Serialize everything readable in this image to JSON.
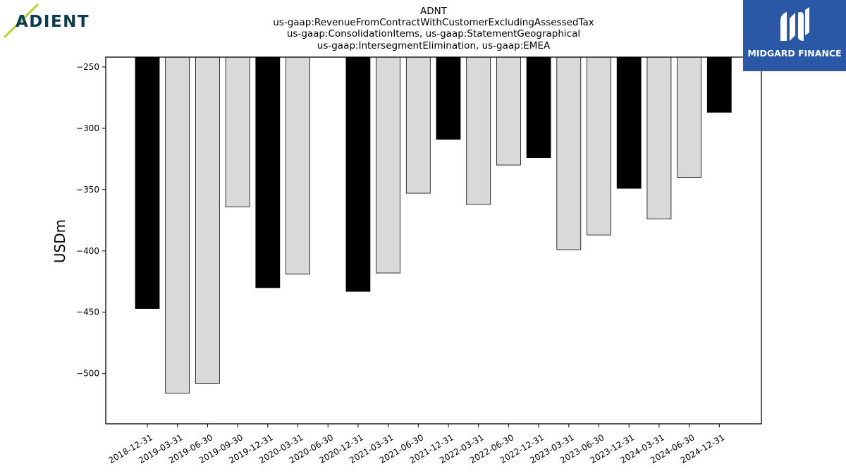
{
  "logos": {
    "left": {
      "name": "adient-logo",
      "text": "ADIENT",
      "accent": "#b5d334",
      "color": "#0d3b4f"
    },
    "right": {
      "name": "midgard-finance-logo",
      "text": "MIDGARD FINANCE",
      "background": "#2a57a6"
    }
  },
  "chart_data": {
    "type": "bar",
    "title_lines": [
      "ADNT",
      "us-gaap:RevenueFromContractWithCustomerExcludingAssessedTax",
      "us-gaap:ConsolidationItems, us-gaap:StatementGeographical",
      "us-gaap:IntersegmentElimination, us-gaap:EMEA"
    ],
    "ylabel": "USDm",
    "xlabel": "",
    "categories": [
      "2018-12-31",
      "2019-03-31",
      "2019-06-30",
      "2019-09-30",
      "2019-12-31",
      "2020-03-31",
      "2020-06-30",
      "2020-12-31",
      "2021-03-31",
      "2021-06-30",
      "2021-12-31",
      "2022-03-31",
      "2022-06-30",
      "2022-12-31",
      "2023-03-31",
      "2023-06-30",
      "2023-12-31",
      "2024-03-31",
      "2024-06-30",
      "2024-12-31"
    ],
    "values": [
      -447,
      -516,
      -508,
      -364,
      -430,
      -419,
      null,
      -433,
      -418,
      -353,
      -309,
      -362,
      -330,
      -324,
      -399,
      -387,
      -349,
      -374,
      -340,
      -287
    ],
    "highlight": [
      true,
      false,
      false,
      false,
      true,
      false,
      false,
      true,
      false,
      false,
      true,
      false,
      false,
      true,
      false,
      false,
      true,
      false,
      false,
      true
    ],
    "colors": {
      "highlight": "#000000",
      "normal": "#d9d9d9",
      "edge": "#000000"
    },
    "ylim": [
      -541,
      -242
    ],
    "yticks": [
      -500,
      -450,
      -400,
      -350,
      -300,
      -250
    ],
    "grid": false,
    "legend": "none"
  }
}
